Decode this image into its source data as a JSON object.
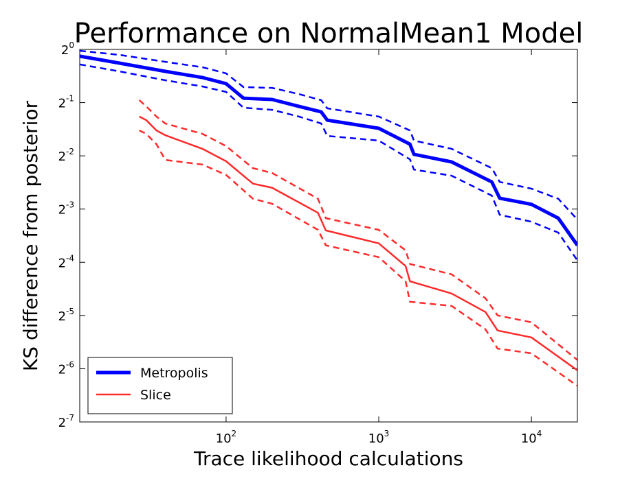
{
  "chart_data": {
    "type": "line",
    "title": "Performance on NormalMean1 Model",
    "x_label": "Trace likelihood calculations",
    "y_label": "KS difference from posterior",
    "xlog": true,
    "ylog": true,
    "xlim": [
      11,
      20000
    ],
    "ylim": [
      0.0078125,
      1
    ],
    "xticks": [
      {
        "value": 100,
        "label": "10^2"
      },
      {
        "value": 1000,
        "label": "10^3"
      },
      {
        "value": 10000,
        "label": "10^4"
      }
    ],
    "yticks": [
      {
        "value": 1,
        "label": "2^0"
      },
      {
        "value": 0.5,
        "label": "2^-1"
      },
      {
        "value": 0.25,
        "label": "2^-2"
      },
      {
        "value": 0.125,
        "label": "2^-3"
      },
      {
        "value": 0.0625,
        "label": "2^-4"
      },
      {
        "value": 0.03125,
        "label": "2^-5"
      },
      {
        "value": 0.015625,
        "label": "2^-6"
      },
      {
        "value": 0.0078125,
        "label": "2^-7"
      }
    ],
    "legend": "lower left",
    "series": [
      {
        "name": "Metropolis",
        "color": "#0000ff",
        "linewidth": 5,
        "x": [
          11,
          20,
          40,
          70,
          100,
          130,
          200,
          300,
          420,
          460,
          1000,
          1600,
          1700,
          3000,
          5500,
          6200,
          10000,
          15000,
          20000
        ],
        "values": [
          0.915,
          0.836,
          0.751,
          0.693,
          0.64,
          0.53,
          0.521,
          0.476,
          0.443,
          0.398,
          0.358,
          0.291,
          0.255,
          0.231,
          0.178,
          0.144,
          0.133,
          0.111,
          0.078
        ],
        "upper": [
          0.982,
          0.931,
          0.851,
          0.793,
          0.732,
          0.612,
          0.606,
          0.559,
          0.516,
          0.464,
          0.417,
          0.348,
          0.305,
          0.274,
          0.213,
          0.178,
          0.163,
          0.143,
          0.109
        ],
        "lower": [
          0.822,
          0.751,
          0.669,
          0.617,
          0.575,
          0.468,
          0.455,
          0.417,
          0.381,
          0.324,
          0.305,
          0.239,
          0.209,
          0.193,
          0.149,
          0.116,
          0.106,
          0.092,
          0.064
        ]
      },
      {
        "name": "Slice",
        "color": "#ff2a2a",
        "linewidth": 2.5,
        "x": [
          27,
          30,
          35,
          40,
          70,
          100,
          150,
          200,
          400,
          450,
          1000,
          1500,
          1600,
          3000,
          5000,
          6000,
          10000,
          20000
        ],
        "values": [
          0.417,
          0.398,
          0.348,
          0.327,
          0.274,
          0.233,
          0.174,
          0.165,
          0.119,
          0.0946,
          0.08,
          0.0595,
          0.0488,
          0.0416,
          0.0327,
          0.0257,
          0.0235,
          0.0153
        ],
        "upper": [
          0.516,
          0.476,
          0.417,
          0.381,
          0.333,
          0.284,
          0.213,
          0.2,
          0.143,
          0.111,
          0.0954,
          0.073,
          0.0611,
          0.0534,
          0.0391,
          0.0313,
          0.0286,
          0.0175
        ],
        "lower": [
          0.348,
          0.333,
          0.291,
          0.237,
          0.223,
          0.195,
          0.143,
          0.134,
          0.0954,
          0.0779,
          0.0668,
          0.0488,
          0.0374,
          0.0354,
          0.0261,
          0.0203,
          0.0191,
          0.0125
        ]
      }
    ]
  }
}
